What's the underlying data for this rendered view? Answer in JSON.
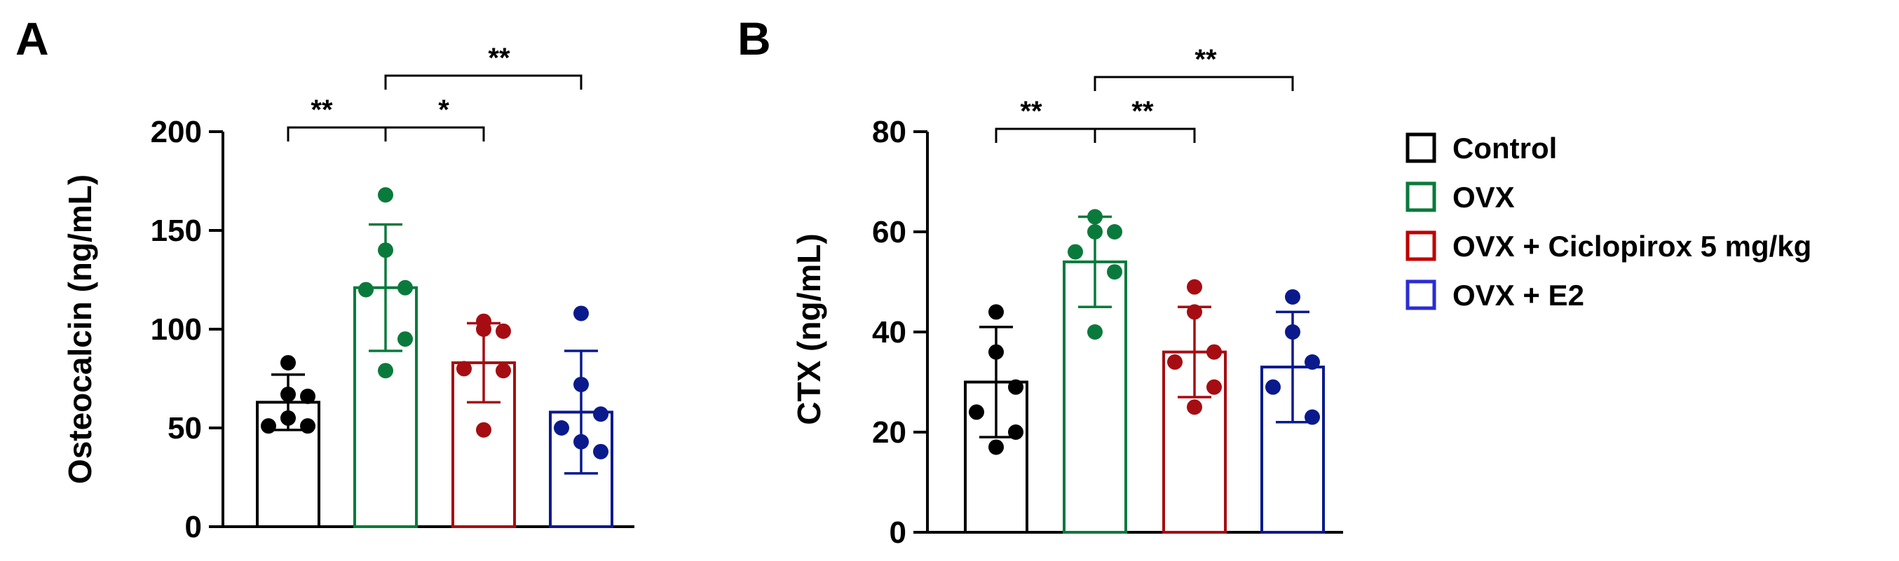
{
  "legend": {
    "entries": [
      {
        "label": "Control",
        "color": "#000000"
      },
      {
        "label": "OVX",
        "color": "#0a7a3c"
      },
      {
        "label": "OVX + Ciclopirox  5 mg/kg",
        "color": "#c00000"
      },
      {
        "label": "OVX + E2",
        "color": "#2b2bd6"
      }
    ]
  },
  "chart_data": [
    {
      "type": "bar",
      "panel_label": "A",
      "ylabel": "Osteocalcin (ng/mL)",
      "xlabel": "",
      "ylim": [
        0,
        200
      ],
      "yticks": [
        0,
        50,
        100,
        150,
        200
      ],
      "categories": [
        "Control",
        "OVX",
        "OVX + Ciclopirox  5 mg/kg",
        "OVX + E2"
      ],
      "colors": [
        "#000000",
        "#0a7a3c",
        "#a50d12",
        "#0a1a8c"
      ],
      "values": [
        63,
        121,
        83,
        58
      ],
      "sd": [
        14,
        32,
        20,
        31
      ],
      "points": [
        [
          83,
          67,
          66,
          51,
          51,
          55
        ],
        [
          168,
          140,
          121,
          120,
          95,
          79
        ],
        [
          104,
          100,
          99,
          80,
          79,
          49
        ],
        [
          108,
          72,
          57,
          50,
          38,
          43
        ]
      ],
      "significance": [
        {
          "from": 0,
          "to": 1,
          "label": "**"
        },
        {
          "from": 1,
          "to": 2,
          "label": "*"
        },
        {
          "from": 1,
          "to": 3,
          "label": "**"
        }
      ]
    },
    {
      "type": "bar",
      "panel_label": "B",
      "ylabel": "CTX (ng/mL)",
      "xlabel": "",
      "ylim": [
        0,
        80
      ],
      "yticks": [
        0,
        20,
        40,
        60,
        80
      ],
      "categories": [
        "Control",
        "OVX",
        "OVX + Ciclopirox  5 mg/kg",
        "OVX + E2"
      ],
      "colors": [
        "#000000",
        "#0a7a3c",
        "#a50d12",
        "#0a1a8c"
      ],
      "values": [
        30,
        54,
        36,
        33
      ],
      "sd": [
        11,
        9,
        9,
        11
      ],
      "points": [
        [
          44,
          36,
          29,
          24,
          20,
          17
        ],
        [
          63,
          60,
          60,
          56,
          52,
          40
        ],
        [
          49,
          44,
          36,
          34,
          29,
          25
        ],
        [
          47,
          40,
          34,
          29,
          23
        ]
      ],
      "significance": [
        {
          "from": 0,
          "to": 1,
          "label": "**"
        },
        {
          "from": 1,
          "to": 2,
          "label": "**"
        },
        {
          "from": 1,
          "to": 3,
          "label": "**"
        }
      ]
    }
  ]
}
